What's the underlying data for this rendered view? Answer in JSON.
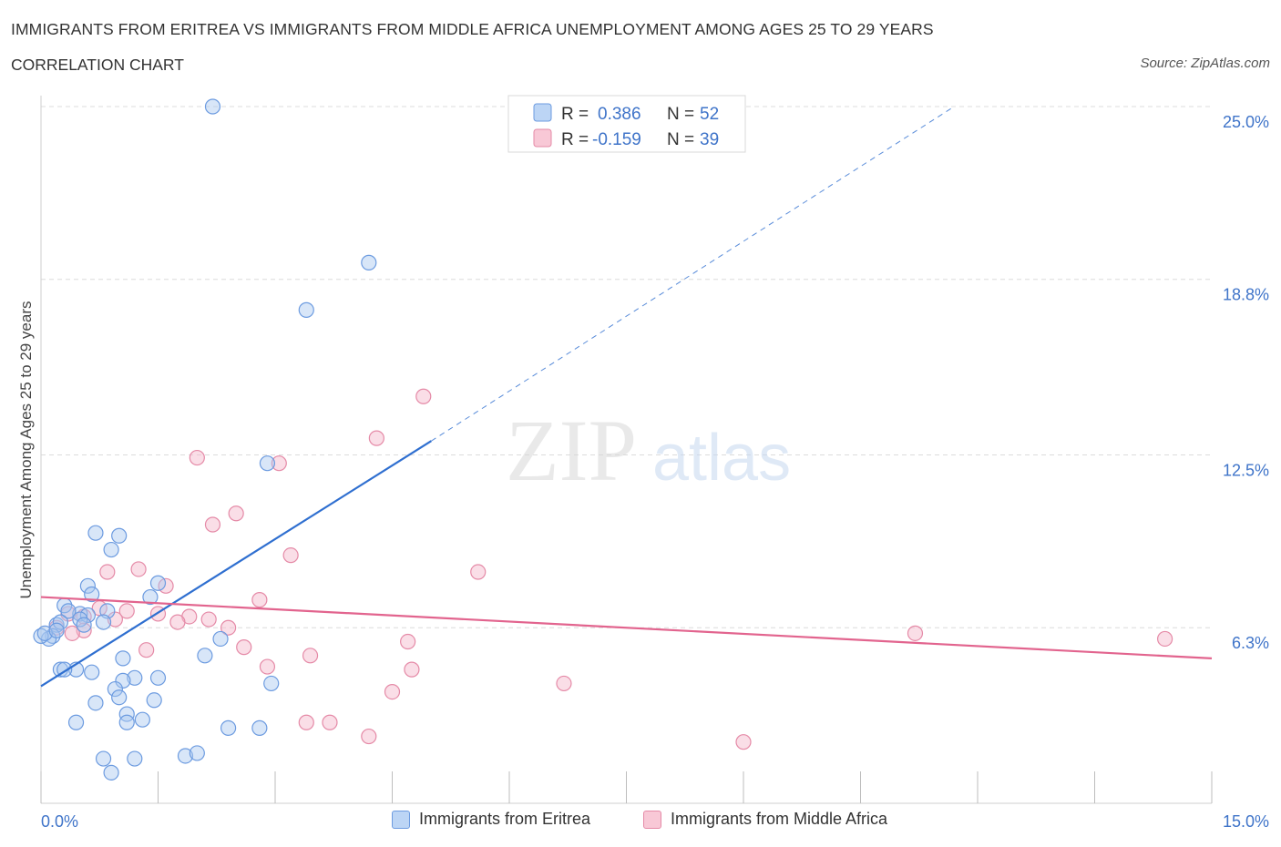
{
  "header": {
    "title": "IMMIGRANTS FROM ERITREA VS IMMIGRANTS FROM MIDDLE AFRICA UNEMPLOYMENT AMONG AGES 25 TO 29 YEARS",
    "subtitle": "CORRELATION CHART",
    "source": "Source: ZipAtlas.com"
  },
  "watermark": {
    "zip": "ZIP",
    "atlas": "atlas"
  },
  "legend": {
    "r_label": "R =",
    "n_label": "N =",
    "series": [
      {
        "r": "0.386",
        "n": "52"
      },
      {
        "r": "-0.159",
        "n": "39"
      }
    ]
  },
  "colors": {
    "eritrea_fill": "#a8c8f0",
    "eritrea_stroke": "#6c9be0",
    "eritrea_line": "#2f6fd0",
    "africa_fill": "#f5b6c9",
    "africa_stroke": "#e58aa7",
    "africa_line": "#e2648e",
    "grid": "#dcdcdc",
    "axis_text": "#3f74c9"
  },
  "chart_data": {
    "type": "scatter",
    "title": "IMMIGRANTS FROM ERITREA VS IMMIGRANTS FROM MIDDLE AFRICA UNEMPLOYMENT AMONG AGES 25 TO 29 YEARS",
    "xlabel": "",
    "ylabel": "Unemployment Among Ages 25 to 29 years",
    "xlim": [
      0,
      15
    ],
    "ylim": [
      0,
      26
    ],
    "x_tick_labels": [
      "0.0%",
      "15.0%"
    ],
    "y_ticks": [
      6.3,
      12.5,
      18.8,
      25.0
    ],
    "y_tick_labels": [
      "6.3%",
      "12.5%",
      "18.8%",
      "25.0%"
    ],
    "grid": true,
    "legend_position": "top-center",
    "series": [
      {
        "name": "Immigrants from Eritrea",
        "points": [
          [
            2.2,
            25.0
          ],
          [
            4.2,
            19.4
          ],
          [
            3.4,
            17.7
          ],
          [
            2.9,
            12.2
          ],
          [
            0.7,
            9.7
          ],
          [
            1.0,
            9.6
          ],
          [
            0.9,
            9.1
          ],
          [
            1.5,
            7.9
          ],
          [
            0.6,
            7.8
          ],
          [
            1.4,
            7.4
          ],
          [
            0.65,
            7.5
          ],
          [
            0.3,
            7.1
          ],
          [
            0.5,
            6.8
          ],
          [
            0.35,
            6.9
          ],
          [
            0.6,
            6.75
          ],
          [
            0.85,
            6.9
          ],
          [
            0.5,
            6.6
          ],
          [
            0.2,
            6.4
          ],
          [
            0.25,
            6.5
          ],
          [
            0.8,
            6.5
          ],
          [
            0.55,
            6.4
          ],
          [
            0.15,
            6.0
          ],
          [
            0.1,
            5.9
          ],
          [
            0.0,
            6.0
          ],
          [
            2.3,
            5.9
          ],
          [
            2.1,
            5.3
          ],
          [
            1.05,
            5.2
          ],
          [
            0.25,
            4.8
          ],
          [
            0.45,
            4.8
          ],
          [
            0.65,
            4.7
          ],
          [
            1.2,
            4.5
          ],
          [
            1.05,
            4.4
          ],
          [
            0.3,
            4.8
          ],
          [
            1.5,
            4.5
          ],
          [
            2.95,
            4.3
          ],
          [
            0.95,
            4.1
          ],
          [
            1.0,
            3.8
          ],
          [
            1.45,
            3.7
          ],
          [
            0.7,
            3.6
          ],
          [
            1.1,
            3.2
          ],
          [
            1.3,
            3.0
          ],
          [
            0.45,
            2.9
          ],
          [
            1.1,
            2.9
          ],
          [
            2.4,
            2.7
          ],
          [
            2.8,
            2.7
          ],
          [
            0.8,
            1.6
          ],
          [
            1.2,
            1.6
          ],
          [
            1.85,
            1.7
          ],
          [
            2.0,
            1.8
          ],
          [
            0.9,
            1.1
          ],
          [
            0.05,
            6.1
          ],
          [
            0.2,
            6.2
          ]
        ],
        "trend": {
          "x": [
            0.0,
            5.0
          ],
          "y": [
            4.2,
            13.0
          ],
          "dashed_to": [
            11.7,
            25.0
          ]
        }
      },
      {
        "name": "Immigrants from Middle Africa",
        "points": [
          [
            4.9,
            14.6
          ],
          [
            4.3,
            13.1
          ],
          [
            2.0,
            12.4
          ],
          [
            3.05,
            12.2
          ],
          [
            2.5,
            10.4
          ],
          [
            2.2,
            10.0
          ],
          [
            3.2,
            8.9
          ],
          [
            5.6,
            8.3
          ],
          [
            1.25,
            8.4
          ],
          [
            0.85,
            8.3
          ],
          [
            1.6,
            7.8
          ],
          [
            2.8,
            7.3
          ],
          [
            0.35,
            6.8
          ],
          [
            0.55,
            6.7
          ],
          [
            0.75,
            7.0
          ],
          [
            1.1,
            6.9
          ],
          [
            1.5,
            6.8
          ],
          [
            1.9,
            6.7
          ],
          [
            0.95,
            6.6
          ],
          [
            2.15,
            6.6
          ],
          [
            1.75,
            6.5
          ],
          [
            2.4,
            6.3
          ],
          [
            0.55,
            6.2
          ],
          [
            0.4,
            6.1
          ],
          [
            0.2,
            6.3
          ],
          [
            11.2,
            6.1
          ],
          [
            14.4,
            5.9
          ],
          [
            4.7,
            5.8
          ],
          [
            2.6,
            5.6
          ],
          [
            1.35,
            5.5
          ],
          [
            3.45,
            5.3
          ],
          [
            2.9,
            4.9
          ],
          [
            4.75,
            4.8
          ],
          [
            6.7,
            4.3
          ],
          [
            4.5,
            4.0
          ],
          [
            3.7,
            2.9
          ],
          [
            3.4,
            2.9
          ],
          [
            4.2,
            2.4
          ],
          [
            9.0,
            2.2
          ]
        ],
        "trend": {
          "x": [
            0.0,
            15.0
          ],
          "y": [
            7.4,
            5.2
          ]
        }
      }
    ]
  },
  "bottom_legend": {
    "series_a": "Immigrants from Eritrea",
    "series_b": "Immigrants from Middle Africa"
  }
}
